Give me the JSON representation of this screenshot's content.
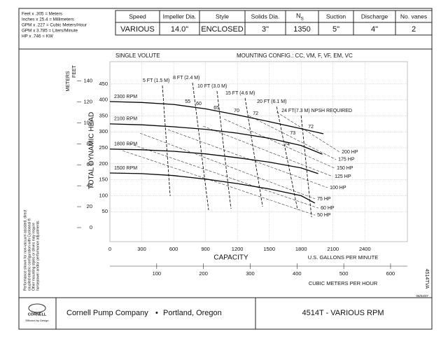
{
  "notes": [
    "Feet x .305 = Meters",
    "Inches x 25.4 = Millimeters",
    "GPM x .227 = Cubic Meters/Hour",
    "GPM x 3.785 = Liters/Minute",
    "HP x .746 = KW"
  ],
  "header": {
    "columns": [
      "Speed",
      "Impeller Dia.",
      "Style",
      "Solids Dia.",
      {
        "text": "N",
        "sub": "S"
      },
      "Suction",
      "Discharge",
      "No. vanes"
    ],
    "values": [
      "VARIOUS",
      "14.0\"",
      "ENCLOSED",
      "3\"",
      "1350",
      "5\"",
      "4\"",
      "2"
    ]
  },
  "chart_data": {
    "type": "line",
    "subtitle_left": "SINGLE VOLUTE",
    "subtitle_right": "MOUNTING CONFIG.:  CC,  VM,  F,  VF,  EM,  VC",
    "ylabel": "TOTAL DYNAMIC HEAD",
    "y_unit": "FEET",
    "y2_unit": "METERS",
    "xlabel": "CAPACITY",
    "x_unit": "U.S. GALLONS PER MINUTE",
    "x2_unit": "CUBIC METERS PER HOUR",
    "xlim": [
      0,
      2800
    ],
    "xticks": [
      0,
      300,
      600,
      900,
      1200,
      1500,
      1800,
      2100,
      2400
    ],
    "x2lim": [
      0,
      636
    ],
    "x2ticks": [
      100,
      200,
      300,
      400,
      500,
      600
    ],
    "ylim": [
      -44,
      520
    ],
    "yticks": [
      50,
      100,
      150,
      200,
      250,
      300,
      350,
      400,
      450
    ],
    "y2lim": [
      -13.4,
      158.5
    ],
    "y2ticks": [
      0,
      20,
      40,
      60,
      80,
      100,
      120,
      140
    ],
    "grid": true,
    "series": [
      {
        "name": "2300 RPM",
        "color": "#000000",
        "x": [
          0,
          300,
          600,
          900,
          1200,
          1500,
          1800,
          2010
        ],
        "values": [
          395,
          392,
          386,
          372,
          353,
          332,
          310,
          294
        ]
      },
      {
        "name": "2100 RPM",
        "color": "#000000",
        "x": [
          0,
          300,
          600,
          900,
          1200,
          1500,
          1800,
          2000
        ],
        "values": [
          325,
          322,
          316,
          308,
          296,
          280,
          257,
          230
        ]
      },
      {
        "name": "1800 RPM",
        "color": "#000000",
        "x": [
          0,
          300,
          600,
          900,
          1200,
          1500,
          1800,
          1960
        ],
        "values": [
          246,
          244,
          239,
          231,
          219,
          205,
          187,
          169
        ]
      },
      {
        "name": "1500 RPM",
        "color": "#000000",
        "x": [
          0,
          300,
          600,
          900,
          1200,
          1500,
          1800,
          1930
        ],
        "values": [
          171,
          169,
          163,
          152,
          138,
          121,
          100,
          77
        ]
      }
    ],
    "npsh_lines": [
      {
        "name": "5 FT (1.5 M)",
        "x": [
          494,
          567
        ],
        "values": [
          445,
          99
        ]
      },
      {
        "name": "8 FT (2.4 M)",
        "x": [
          778,
          929
        ],
        "values": [
          454,
          55
        ]
      },
      {
        "name": "10 FT (3.0 M)",
        "x": [
          1008,
          1140
        ],
        "values": [
          428,
          59
        ]
      },
      {
        "name": "15 FT (4.6 M)",
        "x": [
          1272,
          1437
        ],
        "values": [
          406,
          66
        ]
      },
      {
        "name": "20 FT (6.1 M)",
        "x": [
          1569,
          1767
        ],
        "values": [
          379,
          55
        ]
      },
      {
        "name": "24 FT(7.3 M) NPSH REQUIRED",
        "x": [
          1800,
          1898
        ],
        "values": [
          351,
          33
        ]
      }
    ],
    "hp_lines": [
      {
        "name": "200 HP",
        "x": [
          1569,
          2162
        ],
        "values": [
          362,
          237
        ]
      },
      {
        "name": "175 HP",
        "x": [
          1305,
          2129
        ],
        "values": [
          351,
          213
        ]
      },
      {
        "name": "150 HP",
        "x": [
          1075,
          2116
        ],
        "values": [
          340,
          186
        ]
      },
      {
        "name": "125 HP",
        "x": [
          877,
          2096
        ],
        "values": [
          318,
          160
        ]
      },
      {
        "name": "100 HP",
        "x": [
          547,
          2050
        ],
        "values": [
          307,
          125
        ]
      },
      {
        "name": "75 HP",
        "x": [
          283,
          1931
        ],
        "values": [
          296,
          90
        ]
      },
      {
        "name": "60 HP",
        "x": [
          185,
          1964
        ],
        "values": [
          263,
          61
        ]
      },
      {
        "name": "50 HP",
        "x": [
          119,
          1931
        ],
        "values": [
          241,
          39
        ]
      }
    ],
    "efficiency_labels": {
      "values": [
        55,
        60,
        65,
        70,
        72,
        73,
        74,
        72
      ],
      "x": [
        732,
        837,
        1002,
        1193,
        1371,
        1721,
        1668,
        1892
      ],
      "y": [
        395,
        388,
        375,
        366,
        357,
        296,
        261,
        316
      ]
    }
  },
  "disclaimer": [
    "Performance shown for non-vacuum assisted, direct",
    "coupled electric configuration with Cycloseal ®.",
    "Other mounting styles or drives may require",
    "horsepower and/or performance adjustments."
  ],
  "drawing_number": "4514TVA",
  "date": "08/04/07",
  "footer": {
    "logo": "CORNELL",
    "logo_tagline": "Efficient by Design",
    "company": "Cornell Pump Company",
    "separator": "•",
    "location": "Portland, Oregon",
    "title": "4514T - VARIOUS RPM"
  }
}
